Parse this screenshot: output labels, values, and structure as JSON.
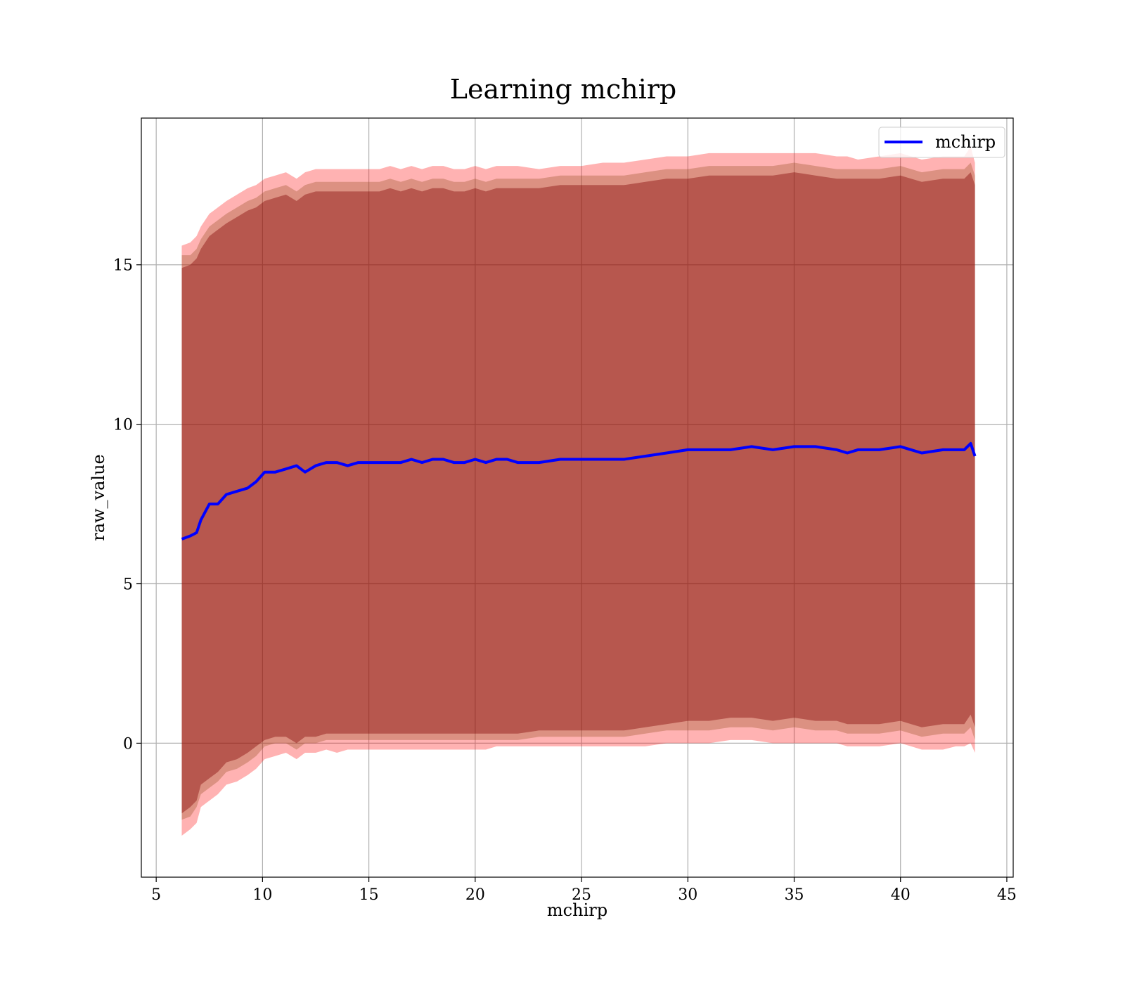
{
  "chart_data": {
    "type": "line",
    "title": "Learning mchirp",
    "xlabel": "mchirp",
    "ylabel": "raw_value",
    "xlim": [
      4.3,
      45.3
    ],
    "ylim": [
      -4.2,
      19.6
    ],
    "xticks": [
      5,
      10,
      15,
      20,
      25,
      30,
      35,
      40,
      45
    ],
    "yticks": [
      0,
      5,
      10,
      15
    ],
    "grid": true,
    "legend_position": "top-right",
    "colors": {
      "line": "#0000ff",
      "band_outer": "#ff0000",
      "band_middle": "#8b4513",
      "band_inner": "#800000"
    },
    "series": [
      {
        "name": "mchirp",
        "x": [
          6.2,
          6.6,
          6.9,
          7.1,
          7.5,
          7.9,
          8.3,
          8.8,
          9.3,
          9.7,
          10.1,
          10.6,
          11.1,
          11.6,
          12.0,
          12.5,
          13.0,
          13.5,
          14.0,
          14.5,
          15.0,
          15.5,
          16.0,
          16.5,
          17.0,
          17.5,
          18.0,
          18.5,
          19.0,
          19.5,
          20.0,
          20.5,
          21.0,
          21.5,
          22.0,
          23.0,
          24.0,
          25.0,
          26.0,
          27.0,
          28.0,
          29.0,
          30.0,
          31.0,
          32.0,
          33.0,
          34.0,
          35.0,
          36.0,
          37.0,
          37.5,
          38.0,
          39.0,
          40.0,
          40.5,
          41.0,
          42.0,
          42.6,
          43.0,
          43.3,
          43.5
        ],
        "y": [
          6.4,
          6.5,
          6.6,
          7.0,
          7.5,
          7.5,
          7.8,
          7.9,
          8.0,
          8.2,
          8.5,
          8.5,
          8.6,
          8.7,
          8.5,
          8.7,
          8.8,
          8.8,
          8.7,
          8.8,
          8.8,
          8.8,
          8.8,
          8.8,
          8.9,
          8.8,
          8.9,
          8.9,
          8.8,
          8.8,
          8.9,
          8.8,
          8.9,
          8.9,
          8.8,
          8.8,
          8.9,
          8.9,
          8.9,
          8.9,
          9.0,
          9.1,
          9.2,
          9.2,
          9.2,
          9.3,
          9.2,
          9.3,
          9.3,
          9.2,
          9.1,
          9.2,
          9.2,
          9.3,
          9.2,
          9.1,
          9.2,
          9.2,
          9.2,
          9.4,
          9.0
        ]
      }
    ],
    "bands": [
      {
        "level": "outer",
        "lower": [
          -2.9,
          -2.7,
          -2.5,
          -2.0,
          -1.8,
          -1.6,
          -1.3,
          -1.2,
          -1.0,
          -0.8,
          -0.5,
          -0.4,
          -0.3,
          -0.5,
          -0.3,
          -0.3,
          -0.2,
          -0.3,
          -0.2,
          -0.2,
          -0.2,
          -0.2,
          -0.2,
          -0.2,
          -0.2,
          -0.2,
          -0.2,
          -0.2,
          -0.2,
          -0.2,
          -0.2,
          -0.2,
          -0.1,
          -0.1,
          -0.1,
          -0.1,
          -0.1,
          -0.1,
          -0.1,
          -0.1,
          -0.1,
          0.0,
          0.0,
          0.0,
          0.1,
          0.1,
          0.0,
          0.0,
          0.0,
          0.0,
          -0.1,
          -0.1,
          -0.1,
          0.0,
          -0.1,
          -0.2,
          -0.2,
          -0.1,
          -0.1,
          0.0,
          -0.3
        ],
        "upper": [
          15.6,
          15.7,
          15.9,
          16.2,
          16.6,
          16.8,
          17.0,
          17.2,
          17.4,
          17.5,
          17.7,
          17.8,
          17.9,
          17.7,
          17.9,
          18.0,
          18.0,
          18.0,
          18.0,
          18.0,
          18.0,
          18.0,
          18.1,
          18.0,
          18.1,
          18.0,
          18.1,
          18.1,
          18.0,
          18.0,
          18.1,
          18.0,
          18.1,
          18.1,
          18.1,
          18.0,
          18.1,
          18.1,
          18.2,
          18.2,
          18.3,
          18.4,
          18.4,
          18.5,
          18.5,
          18.5,
          18.5,
          18.5,
          18.5,
          18.4,
          18.4,
          18.3,
          18.4,
          18.5,
          18.4,
          18.3,
          18.4,
          18.4,
          18.4,
          18.7,
          18.2
        ]
      },
      {
        "level": "middle",
        "lower": [
          -2.4,
          -2.3,
          -2.0,
          -1.6,
          -1.4,
          -1.2,
          -0.9,
          -0.8,
          -0.6,
          -0.4,
          -0.1,
          0.0,
          0.0,
          -0.2,
          0.0,
          0.0,
          0.1,
          0.1,
          0.1,
          0.1,
          0.1,
          0.1,
          0.1,
          0.1,
          0.1,
          0.1,
          0.1,
          0.1,
          0.1,
          0.1,
          0.1,
          0.1,
          0.1,
          0.1,
          0.1,
          0.2,
          0.2,
          0.2,
          0.2,
          0.2,
          0.3,
          0.4,
          0.4,
          0.4,
          0.5,
          0.5,
          0.4,
          0.5,
          0.4,
          0.4,
          0.3,
          0.3,
          0.3,
          0.4,
          0.3,
          0.2,
          0.3,
          0.3,
          0.3,
          0.5,
          0.1
        ],
        "upper": [
          15.3,
          15.3,
          15.5,
          15.8,
          16.2,
          16.4,
          16.6,
          16.8,
          17.0,
          17.1,
          17.3,
          17.4,
          17.5,
          17.3,
          17.5,
          17.6,
          17.6,
          17.6,
          17.6,
          17.6,
          17.6,
          17.6,
          17.7,
          17.6,
          17.7,
          17.6,
          17.7,
          17.7,
          17.6,
          17.6,
          17.7,
          17.6,
          17.7,
          17.7,
          17.7,
          17.7,
          17.8,
          17.8,
          17.8,
          17.8,
          17.9,
          18.0,
          18.0,
          18.1,
          18.1,
          18.1,
          18.1,
          18.2,
          18.1,
          18.0,
          18.0,
          18.0,
          18.0,
          18.1,
          18.0,
          17.9,
          18.0,
          18.0,
          18.0,
          18.2,
          17.8
        ]
      },
      {
        "level": "inner",
        "lower": [
          -2.2,
          -2.0,
          -1.8,
          -1.3,
          -1.1,
          -0.9,
          -0.6,
          -0.5,
          -0.3,
          -0.1,
          0.1,
          0.2,
          0.2,
          0.0,
          0.2,
          0.2,
          0.3,
          0.3,
          0.3,
          0.3,
          0.3,
          0.3,
          0.3,
          0.3,
          0.3,
          0.3,
          0.3,
          0.3,
          0.3,
          0.3,
          0.3,
          0.3,
          0.3,
          0.3,
          0.3,
          0.4,
          0.4,
          0.4,
          0.4,
          0.4,
          0.5,
          0.6,
          0.7,
          0.7,
          0.8,
          0.8,
          0.7,
          0.8,
          0.7,
          0.7,
          0.6,
          0.6,
          0.6,
          0.7,
          0.6,
          0.5,
          0.6,
          0.6,
          0.6,
          0.9,
          0.5
        ],
        "upper": [
          14.9,
          15.0,
          15.2,
          15.5,
          15.9,
          16.1,
          16.3,
          16.5,
          16.7,
          16.8,
          17.0,
          17.1,
          17.2,
          17.0,
          17.2,
          17.3,
          17.3,
          17.3,
          17.3,
          17.3,
          17.3,
          17.3,
          17.4,
          17.3,
          17.4,
          17.3,
          17.4,
          17.4,
          17.3,
          17.3,
          17.4,
          17.3,
          17.4,
          17.4,
          17.4,
          17.4,
          17.5,
          17.5,
          17.5,
          17.5,
          17.6,
          17.7,
          17.7,
          17.8,
          17.8,
          17.8,
          17.8,
          17.9,
          17.8,
          17.7,
          17.7,
          17.7,
          17.7,
          17.8,
          17.7,
          17.6,
          17.7,
          17.7,
          17.7,
          17.9,
          17.5
        ]
      }
    ]
  }
}
